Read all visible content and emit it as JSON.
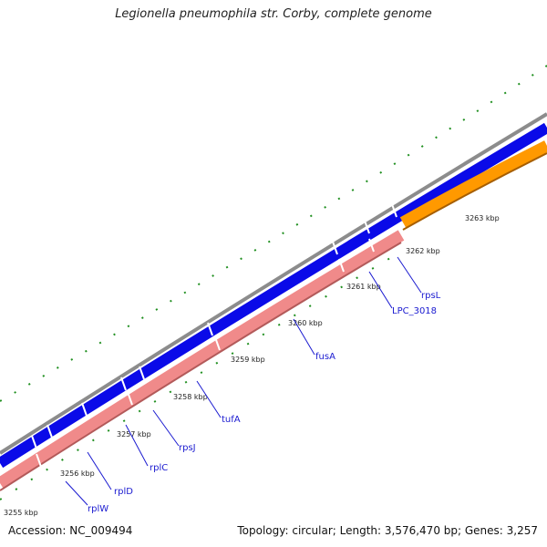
{
  "title": "Legionella pneumophila str. Corby, complete genome",
  "footer": {
    "accession": "Accession: NC_009494",
    "summary": "Topology: circular; Length: 3,576,470 bp; Genes: 3,257"
  },
  "colors": {
    "backbone": "#8c8c8c",
    "forward_gene": "#0a0ae8",
    "reverse_gene": "#f08a8a",
    "rrna_gene": "#ff9900",
    "gc_skew": "#1f8f1f",
    "label": "#1a1ad0"
  },
  "scale_ticks": [
    "3255 kbp",
    "3256 kbp",
    "3257 kbp",
    "3258 kbp",
    "3259 kbp",
    "3260 kbp",
    "3261 kbp",
    "3262 kbp",
    "3263 kbp"
  ],
  "gene_labels": [
    "rplW",
    "rplD",
    "rplC",
    "rpsJ",
    "tufA",
    "fusA",
    "LPC_3018",
    "rpsL"
  ]
}
